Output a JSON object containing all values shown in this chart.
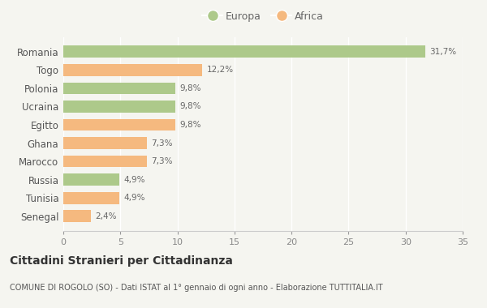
{
  "categories": [
    "Romania",
    "Togo",
    "Polonia",
    "Ucraina",
    "Egitto",
    "Ghana",
    "Marocco",
    "Russia",
    "Tunisia",
    "Senegal"
  ],
  "values": [
    31.7,
    12.2,
    9.8,
    9.8,
    9.8,
    7.3,
    7.3,
    4.9,
    4.9,
    2.4
  ],
  "labels": [
    "31,7%",
    "12,2%",
    "9,8%",
    "9,8%",
    "9,8%",
    "7,3%",
    "7,3%",
    "4,9%",
    "4,9%",
    "2,4%"
  ],
  "continents": [
    "Europa",
    "Africa",
    "Europa",
    "Europa",
    "Africa",
    "Africa",
    "Africa",
    "Europa",
    "Africa",
    "Africa"
  ],
  "color_europa": "#adc98a",
  "color_africa": "#f5b97f",
  "background_color": "#f5f5f0",
  "title": "Cittadini Stranieri per Cittadinanza",
  "subtitle": "COMUNE DI ROGOLO (SO) - Dati ISTAT al 1° gennaio di ogni anno - Elaborazione TUTTITALIA.IT",
  "xlim": [
    0,
    35
  ],
  "xticks": [
    0,
    5,
    10,
    15,
    20,
    25,
    30,
    35
  ],
  "legend_europa": "Europa",
  "legend_africa": "Africa"
}
